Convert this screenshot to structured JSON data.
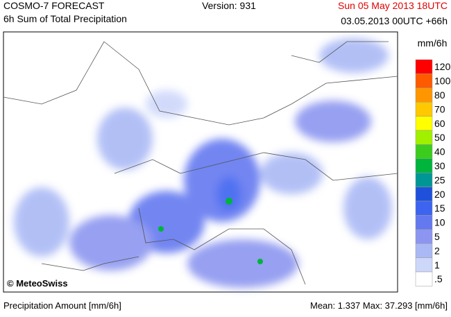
{
  "header": {
    "title": "COSMO-7 FORECAST",
    "subtitle": "6h Sum of Total Precipitation",
    "version": "Version: 931",
    "valid_time": "Sun 05 May 2013 18UTC",
    "run": "03.05.2013 00UTC +66h"
  },
  "legend": {
    "unit": "mm/6h",
    "levels": [
      {
        "label": "120",
        "color": "#ff0000"
      },
      {
        "label": "100",
        "color": "#ff5a00"
      },
      {
        "label": "80",
        "color": "#ff9600"
      },
      {
        "label": "70",
        "color": "#ffc800"
      },
      {
        "label": "60",
        "color": "#ffff00"
      },
      {
        "label": "50",
        "color": "#a0f000"
      },
      {
        "label": "40",
        "color": "#3ccc1e"
      },
      {
        "label": "30",
        "color": "#00b43c"
      },
      {
        "label": "25",
        "color": "#009696"
      },
      {
        "label": "20",
        "color": "#1e50dc"
      },
      {
        "label": "15",
        "color": "#3c64f0"
      },
      {
        "label": "10",
        "color": "#6478f0"
      },
      {
        "label": "5",
        "color": "#8c96f0"
      },
      {
        "label": "2",
        "color": "#aab9f5"
      },
      {
        "label": "1",
        "color": "#cdd7fa"
      },
      {
        "label": ".5",
        "color": "#ffffff"
      }
    ]
  },
  "map": {
    "credit": "© MeteoSwiss"
  },
  "footer": {
    "left": "Precipitation Amount [mm/6h]",
    "right": "Mean:  1.337 Max:  37.293 [mm/6h]"
  }
}
